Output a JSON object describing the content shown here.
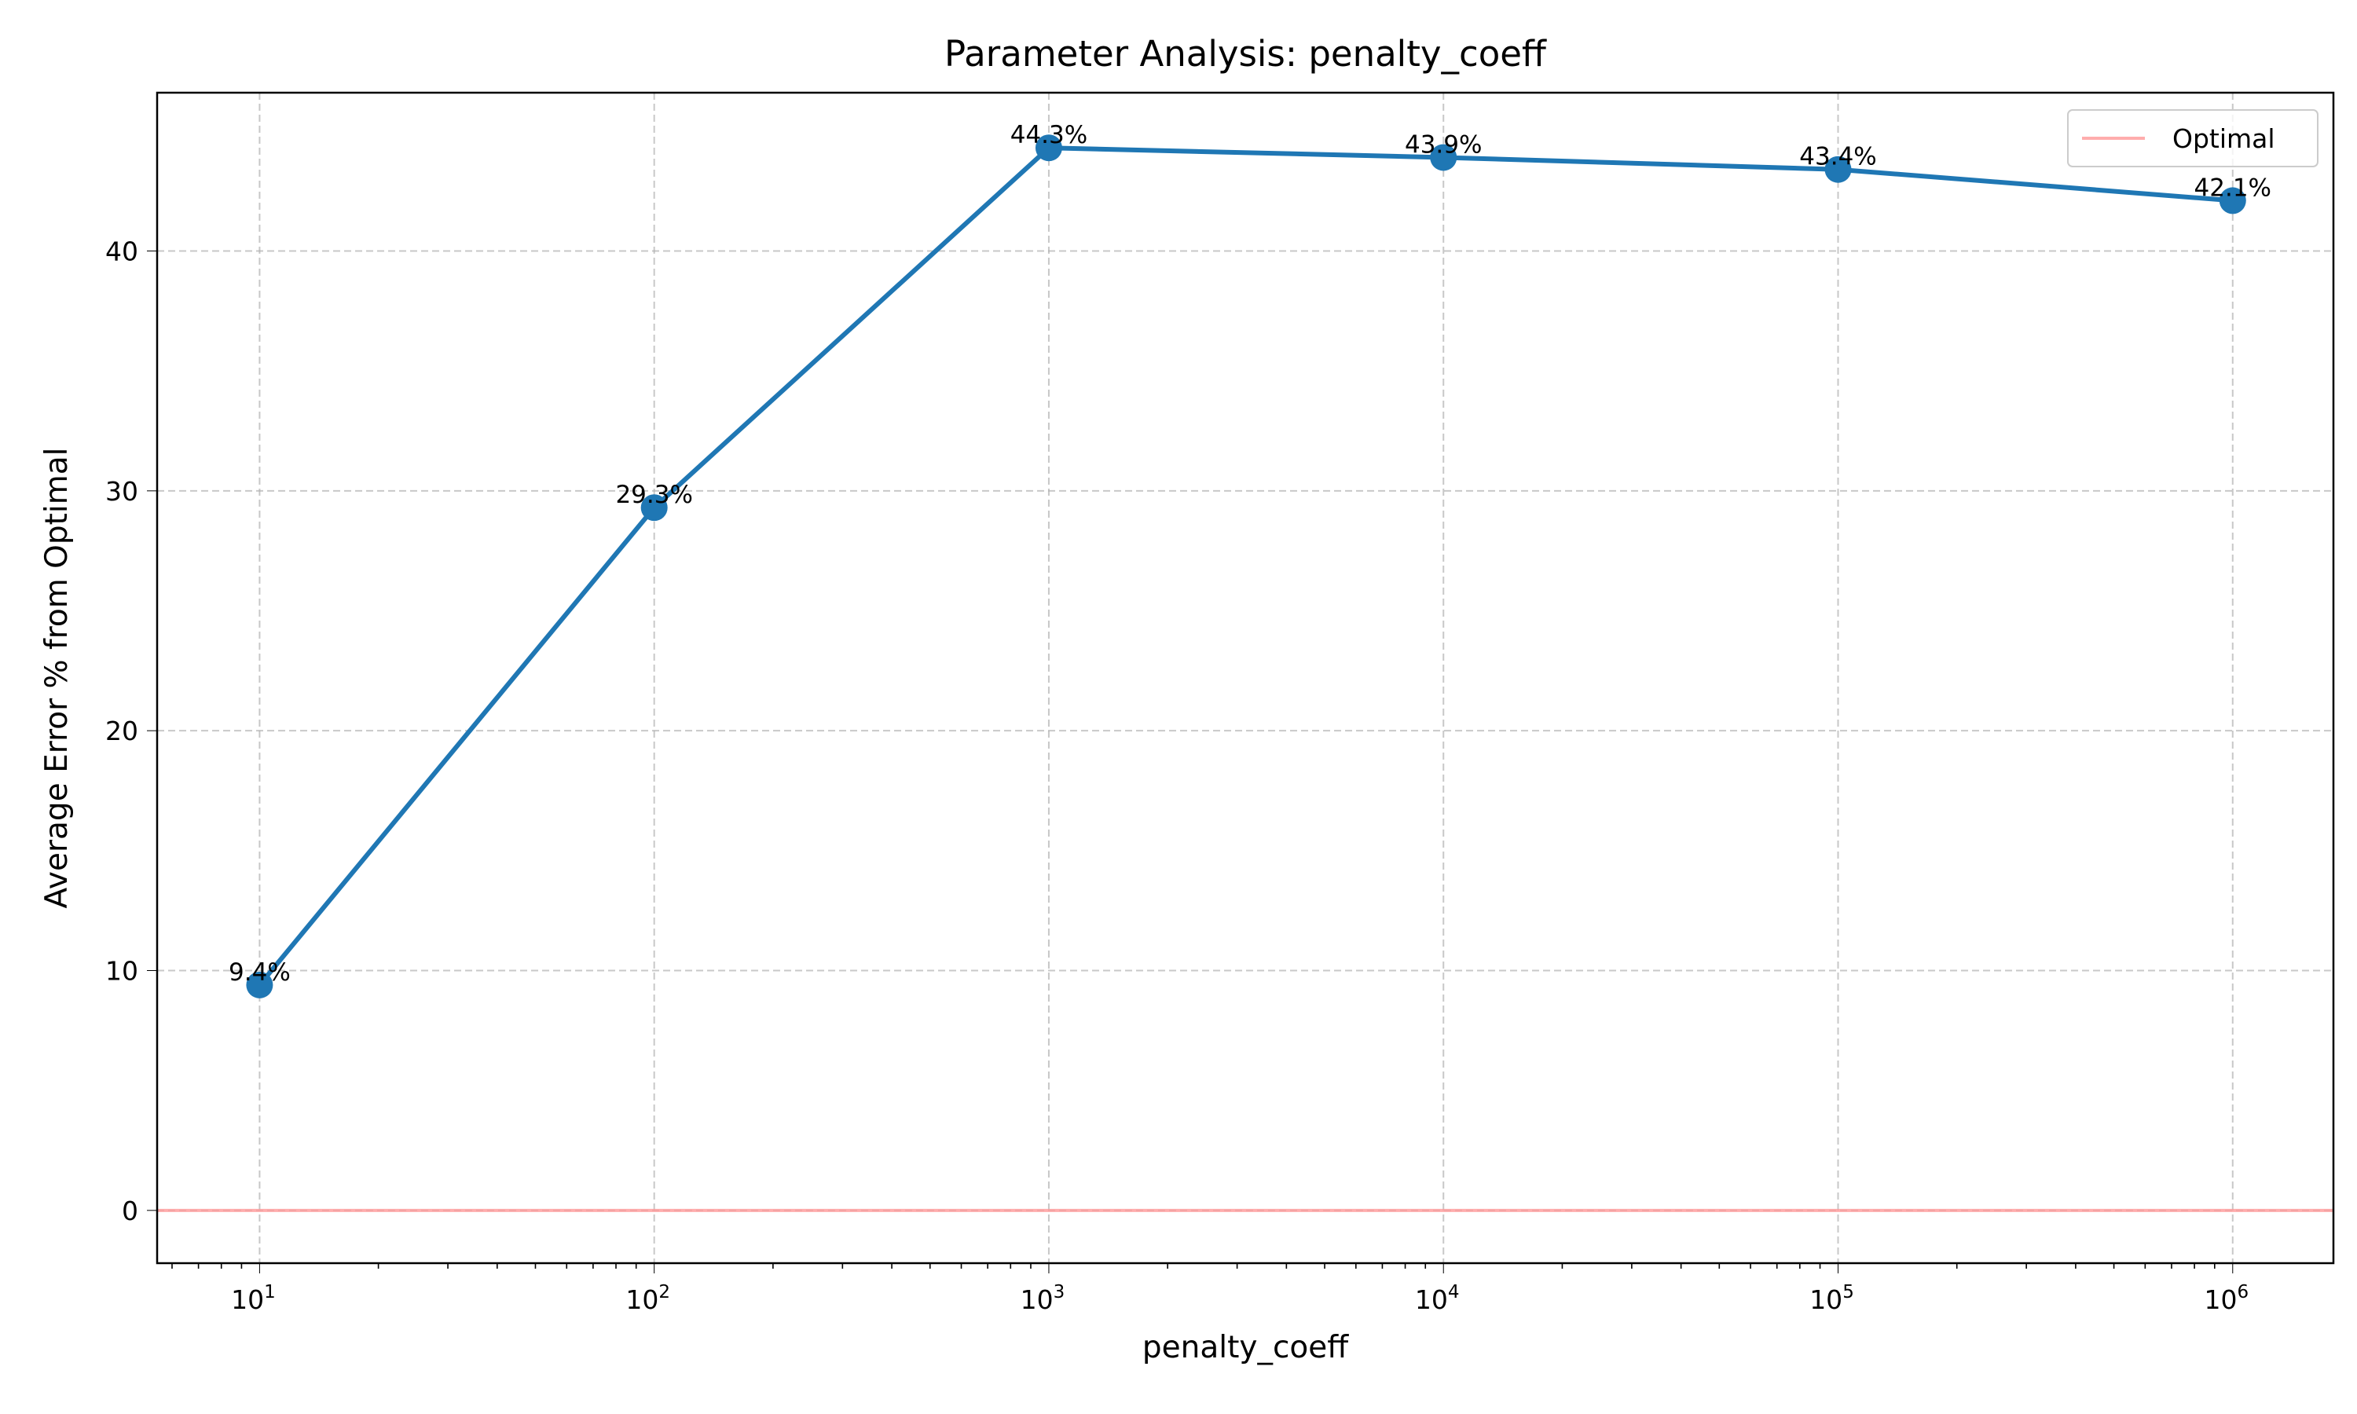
{
  "chart_data": {
    "type": "line",
    "title": "Parameter Analysis: penalty_coeff",
    "xlabel": "penalty_coeff",
    "ylabel": "Average Error % from Optimal",
    "xscale": "log",
    "xlim": [
      5.5,
      1800000
    ],
    "ylim": [
      -2.2,
      46.6
    ],
    "xticks": [
      {
        "value": 10,
        "base": "10",
        "exp": "1"
      },
      {
        "value": 100,
        "base": "10",
        "exp": "2"
      },
      {
        "value": 1000,
        "base": "10",
        "exp": "3"
      },
      {
        "value": 10000,
        "base": "10",
        "exp": "4"
      },
      {
        "value": 100000,
        "base": "10",
        "exp": "5"
      },
      {
        "value": 1000000,
        "base": "10",
        "exp": "6"
      }
    ],
    "yticks": [
      {
        "value": 0,
        "label": "0"
      },
      {
        "value": 10,
        "label": "10"
      },
      {
        "value": 20,
        "label": "20"
      },
      {
        "value": 30,
        "label": "30"
      },
      {
        "value": 40,
        "label": "40"
      }
    ],
    "grid": true,
    "series": [
      {
        "color": "#1f77b4",
        "points": [
          {
            "x": 10,
            "y": 9.4,
            "label": "9.4%"
          },
          {
            "x": 100,
            "y": 29.3,
            "label": "29.3%"
          },
          {
            "x": 1000,
            "y": 44.3,
            "label": "44.3%"
          },
          {
            "x": 10000,
            "y": 43.9,
            "label": "43.9%"
          },
          {
            "x": 100000,
            "y": 43.4,
            "label": "43.4%"
          },
          {
            "x": 1000000,
            "y": 42.1,
            "label": "42.1%"
          }
        ]
      }
    ],
    "reference_line": {
      "y": 0,
      "name": "Optimal",
      "color": "#ff9999"
    },
    "legend": {
      "position": "top-right",
      "entries": [
        "Optimal"
      ]
    }
  }
}
